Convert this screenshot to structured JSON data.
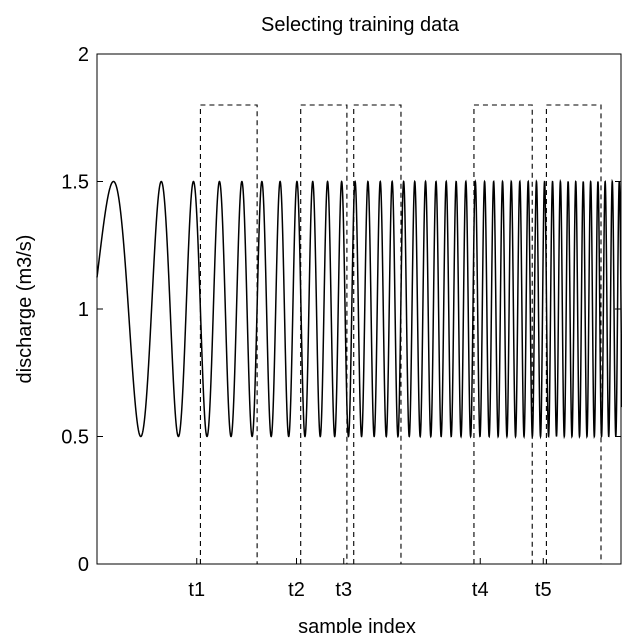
{
  "chart_data": {
    "type": "line",
    "title": "Selecting training data",
    "xlabel": "sample index",
    "ylabel": "discharge (m3/s)",
    "ylim": [
      0,
      2
    ],
    "y_ticks": [
      {
        "value": 0,
        "label": "0"
      },
      {
        "value": 0.5,
        "label": "0.5"
      },
      {
        "value": 1,
        "label": "1"
      },
      {
        "value": 1.5,
        "label": "1.5"
      },
      {
        "value": 2,
        "label": "2"
      }
    ],
    "x_ticks": [
      {
        "position": 0.19,
        "label": "t1"
      },
      {
        "position": 0.38,
        "label": "t2"
      },
      {
        "position": 0.47,
        "label": "t3"
      },
      {
        "position": 0.73,
        "label": "t4"
      },
      {
        "position": 0.85,
        "label": "t5"
      }
    ],
    "signal": {
      "shape": "chirp sinusoid",
      "mean": 1.0,
      "amplitude": 0.5,
      "min": 0.5,
      "max": 1.5,
      "frequency_increasing": true
    },
    "training_windows": [
      {
        "x_start": 0.197,
        "x_end": 0.305,
        "level": 1.8
      },
      {
        "x_start": 0.388,
        "x_end": 0.476,
        "level": 1.8
      },
      {
        "x_start": 0.489,
        "x_end": 0.579,
        "level": 1.8
      },
      {
        "x_start": 0.718,
        "x_end": 0.829,
        "level": 1.8
      },
      {
        "x_start": 0.856,
        "x_end": 0.96,
        "level": 1.8
      }
    ],
    "grid": false,
    "legend": "none"
  }
}
